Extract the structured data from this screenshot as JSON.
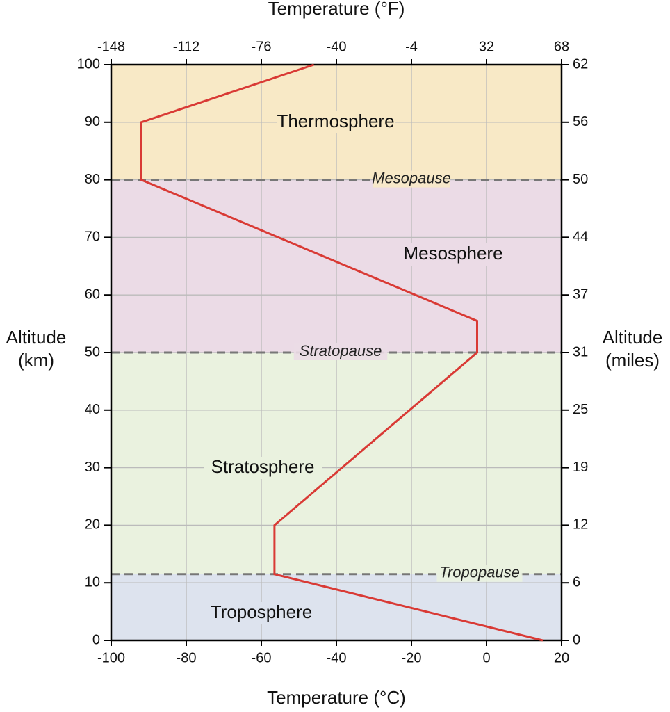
{
  "chart_data": {
    "type": "line",
    "title_top": "Temperature (°F)",
    "xlabel": "Temperature (°C)",
    "ylabel": [
      "Altitude",
      "(km)"
    ],
    "y2label": [
      "Altitude",
      "(miles)"
    ],
    "xlim": [
      -100,
      20
    ],
    "xticks": [
      -100,
      -80,
      -60,
      -40,
      -20,
      0,
      20
    ],
    "x2lim": [
      -148,
      68
    ],
    "x2ticks": [
      -148,
      -112,
      -76,
      -40,
      -4,
      32,
      68
    ],
    "ylim": [
      0,
      100
    ],
    "yticks": [
      0,
      10,
      20,
      30,
      40,
      50,
      60,
      70,
      80,
      90,
      100
    ],
    "y2lim": [
      0,
      62.137
    ],
    "y2ticks": [
      {
        "value": 0,
        "label": "0"
      },
      {
        "value": 6.214,
        "label": "6"
      },
      {
        "value": 12.427,
        "label": "12"
      },
      {
        "value": 18.641,
        "label": "19"
      },
      {
        "value": 24.855,
        "label": "25"
      },
      {
        "value": 31.069,
        "label": "31"
      },
      {
        "value": 37.282,
        "label": "37"
      },
      {
        "value": 43.5,
        "label": "44"
      },
      {
        "value": 49.71,
        "label": "50"
      },
      {
        "value": 55.923,
        "label": "56"
      },
      {
        "value": 62.137,
        "label": "62"
      }
    ],
    "grid": true,
    "layers": [
      {
        "name": "Troposphere",
        "range": [
          0,
          11.5
        ],
        "color": "#dde3ee"
      },
      {
        "name": "Stratosphere",
        "range": [
          11.5,
          50
        ],
        "color": "#eaf2df"
      },
      {
        "name": "Mesosphere",
        "range": [
          50,
          80
        ],
        "color": "#ebdbe6"
      },
      {
        "name": "Thermosphere",
        "range": [
          80,
          100
        ],
        "color": "#f8e9c6"
      }
    ],
    "boundaries": [
      {
        "name": "Tropopause",
        "value": 11.5
      },
      {
        "name": "Stratopause",
        "value": 50
      },
      {
        "name": "Mesopause",
        "value": 80
      }
    ],
    "series": [
      {
        "color": "#d93a35",
        "x": [
          15,
          -56.5,
          -56.5,
          -2.5,
          -2.5,
          -92,
          -92,
          -46
        ],
        "y": [
          0,
          11.5,
          20,
          50,
          55.5,
          80,
          90,
          100
        ]
      }
    ]
  }
}
